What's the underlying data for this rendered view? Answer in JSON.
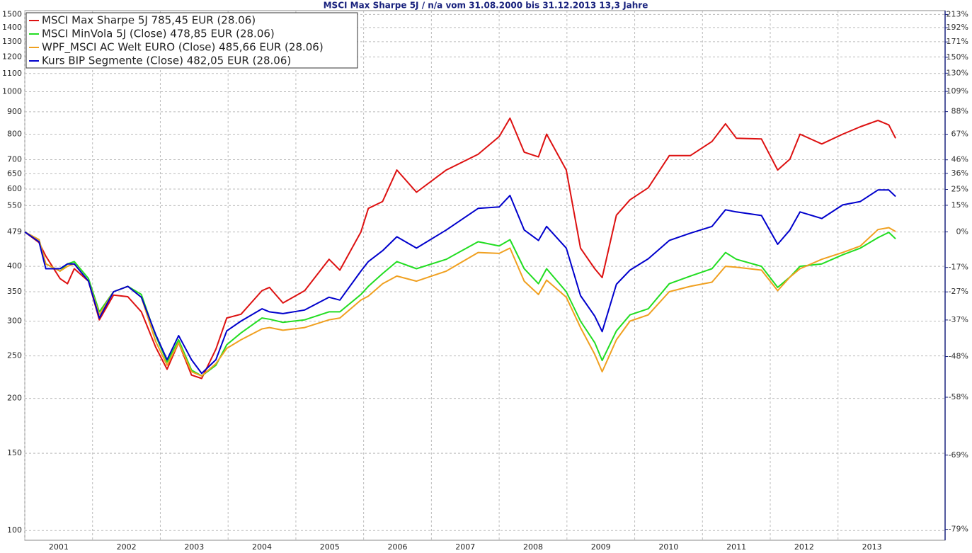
{
  "chart_data": {
    "type": "line",
    "title": "MSCI Max Sharpe 5J / n/a vom 31.08.2000 bis 31.12.2013 13,3 Jahre",
    "x": [
      2001.0,
      2001.21,
      2001.31,
      2001.52,
      2001.63,
      2001.73,
      2001.94,
      2002.1,
      2002.31,
      2002.52,
      2002.72,
      2002.93,
      2003.1,
      2003.27,
      2003.46,
      2003.61,
      2003.82,
      2003.98,
      2004.19,
      2004.5,
      2004.61,
      2004.81,
      2005.13,
      2005.49,
      2005.65,
      2005.96,
      2006.07,
      2006.28,
      2006.49,
      2006.78,
      2007.22,
      2007.69,
      2008.0,
      2008.16,
      2008.37,
      2008.58,
      2008.7,
      2008.99,
      2009.2,
      2009.41,
      2009.52,
      2009.73,
      2009.93,
      2010.2,
      2010.51,
      2010.82,
      2011.14,
      2011.34,
      2011.5,
      2011.87,
      2012.11,
      2012.29,
      2012.44,
      2012.76,
      2013.07,
      2013.33,
      2013.59,
      2013.75,
      2013.85
    ],
    "series": [
      {
        "name": "MSCI Max Sharpe 5J 785,45 EUR (28.06)",
        "color": "#dd1111",
        "values": [
          479,
          453,
          422,
          375,
          365,
          395,
          370,
          302,
          344,
          341,
          315,
          262,
          233,
          268,
          226,
          222,
          259,
          305,
          311,
          352,
          358,
          330,
          352,
          415,
          392,
          479,
          542,
          562,
          663,
          590,
          663,
          720,
          790,
          870,
          728,
          710,
          800,
          663,
          440,
          395,
          377,
          523,
          567,
          604,
          715,
          715,
          770,
          845,
          783,
          780,
          663,
          702,
          800,
          760,
          800,
          832,
          860,
          840,
          783
        ]
      },
      {
        "name": "MSCI MinVola 5J (Close) 478,85 EUR (28.06)",
        "color": "#22dd22",
        "values": [
          479,
          460,
          405,
          390,
          405,
          410,
          375,
          315,
          350,
          360,
          345,
          278,
          242,
          272,
          232,
          225,
          238,
          265,
          282,
          305,
          303,
          298,
          302,
          315,
          315,
          345,
          360,
          385,
          410,
          395,
          415,
          455,
          445,
          460,
          395,
          365,
          395,
          350,
          300,
          268,
          244,
          285,
          310,
          320,
          365,
          380,
          395,
          430,
          415,
          400,
          358,
          378,
          400,
          405,
          425,
          440,
          465,
          478,
          462
        ]
      },
      {
        "name": "WPF_MSCI AC Welt EURO (Close) 485,66 EUR (28.06)",
        "color": "#f0a020",
        "values": [
          479,
          460,
          405,
          390,
          400,
          405,
          370,
          310,
          350,
          360,
          340,
          270,
          238,
          268,
          230,
          225,
          240,
          260,
          272,
          288,
          290,
          286,
          290,
          302,
          305,
          335,
          342,
          365,
          380,
          370,
          390,
          430,
          428,
          440,
          370,
          345,
          372,
          340,
          290,
          252,
          230,
          272,
          300,
          310,
          350,
          360,
          368,
          400,
          398,
          392,
          352,
          378,
          395,
          415,
          430,
          445,
          485,
          490,
          480
        ]
      },
      {
        "name": "Kurs BIP Segmente (Close) 482,05 EUR (28.06)",
        "color": "#0000cc",
        "values": [
          479,
          455,
          395,
          395,
          405,
          405,
          370,
          305,
          350,
          360,
          340,
          280,
          245,
          278,
          245,
          228,
          245,
          285,
          300,
          320,
          315,
          312,
          318,
          340,
          335,
          390,
          410,
          434,
          467,
          440,
          484,
          542,
          546,
          580,
          484,
          458,
          493,
          440,
          343,
          308,
          284,
          364,
          392,
          416,
          458,
          476,
          493,
          538,
          532,
          522,
          449,
          484,
          532,
          514,
          552,
          562,
          597,
          597,
          577
        ]
      }
    ],
    "xlim": [
      2001,
      2014.58
    ],
    "xticks": [
      2001,
      2002,
      2003,
      2004,
      2005,
      2006,
      2007,
      2008,
      2009,
      2010,
      2011,
      2012,
      2013
    ],
    "ylim": [
      95,
      1530
    ],
    "yscale": "log",
    "yticks": [
      100,
      150,
      200,
      250,
      300,
      350,
      400,
      479,
      550,
      600,
      650,
      700,
      800,
      900,
      1000,
      1100,
      1200,
      1300,
      1400,
      1500
    ],
    "y2lim": [
      -80.17,
      219.4
    ],
    "y2scale": "log",
    "y2ticks": [
      {
        "value": 213,
        "label": "213%"
      },
      {
        "value": 192,
        "label": "192%"
      },
      {
        "value": 171,
        "label": "171%"
      },
      {
        "value": 150,
        "label": "150%"
      },
      {
        "value": 130,
        "label": "130%"
      },
      {
        "value": 109,
        "label": "109%"
      },
      {
        "value": 88,
        "label": "88%"
      },
      {
        "value": 67,
        "label": "67%"
      },
      {
        "value": 46,
        "label": "46%"
      },
      {
        "value": 36,
        "label": "36%"
      },
      {
        "value": 25,
        "label": "25%"
      },
      {
        "value": 15,
        "label": "15%"
      },
      {
        "value": 0,
        "label": "0%"
      },
      {
        "value": -17,
        "label": "-17%"
      },
      {
        "value": -27,
        "label": "-27%"
      },
      {
        "value": -37,
        "label": "-37%"
      },
      {
        "value": -48,
        "label": "-48%"
      },
      {
        "value": -58,
        "label": "-58%"
      },
      {
        "value": -69,
        "label": "-69%"
      },
      {
        "value": -79,
        "label": "-79%"
      }
    ],
    "grid": true,
    "legend": "top-left"
  }
}
